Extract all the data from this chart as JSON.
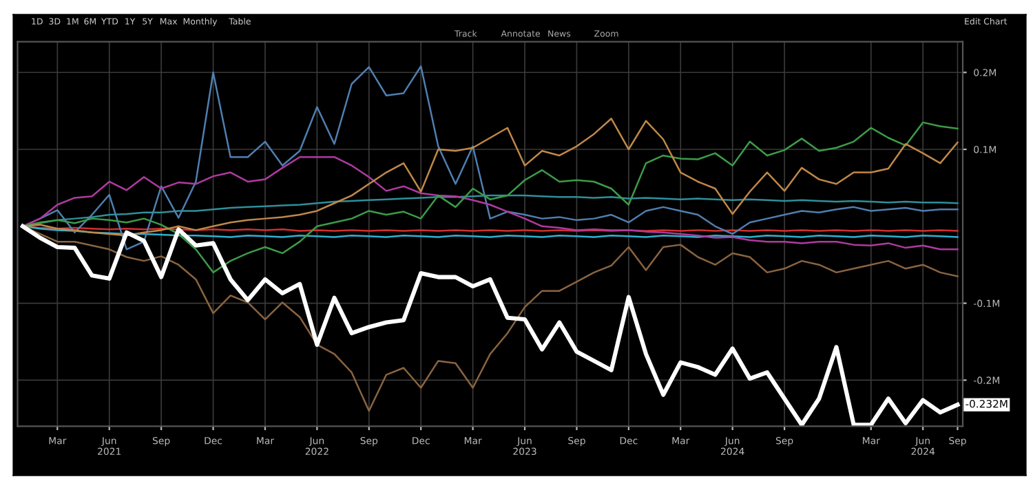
{
  "chart_data": {
    "type": "line",
    "categories": [
      null,
      null,
      "Mar",
      null,
      null,
      "Jun\n2021",
      null,
      null,
      "Sep",
      null,
      null,
      "Dec",
      null,
      null,
      "Mar",
      null,
      null,
      "Jun\n2022",
      null,
      null,
      "Sep",
      null,
      null,
      "Dec",
      null,
      null,
      "Mar",
      null,
      null,
      "Jun\n2023",
      null,
      null,
      "Sep",
      null,
      null,
      "Dec",
      null,
      null,
      "Mar",
      null,
      null,
      "Jun\n2024",
      null,
      null,
      "Sep",
      null,
      null,
      null,
      null,
      "Mar",
      null,
      null,
      "Jun\n2024",
      null,
      "Sep"
    ],
    "ylim": [
      -0.26,
      0.24
    ],
    "yticks": [
      {
        "value": -0.2,
        "label": "-0.2M"
      },
      {
        "value": -0.1,
        "label": "-0.1M"
      },
      {
        "value": 0.1,
        "label": "0.1M"
      },
      {
        "value": 0.2,
        "label": "0.2M"
      }
    ],
    "grid": true,
    "legend": false,
    "annotations": [
      "1D",
      "3D",
      "1M",
      "6M",
      "YTD",
      "1Y",
      "5Y",
      "Max",
      "Monthly",
      "Table",
      "Track",
      "Annotate",
      "News",
      "Zoom",
      "Edit Chart"
    ],
    "series": [
      {
        "color": "#d03030",
        "values": [
          0,
          -0.002,
          -0.003,
          -0.002,
          -0.003,
          -0.004,
          -0.003,
          -0.004,
          -0.003,
          -0.004,
          -0.005,
          -0.004,
          -0.005,
          -0.004,
          -0.005,
          -0.004,
          -0.006,
          -0.005,
          -0.006,
          -0.005,
          -0.006,
          -0.005,
          -0.006,
          -0.005,
          -0.006,
          -0.005,
          -0.006,
          -0.005,
          -0.006,
          -0.005,
          -0.006,
          -0.005,
          -0.006,
          -0.005,
          -0.006,
          -0.005,
          -0.006,
          -0.005,
          -0.006,
          -0.005,
          -0.006,
          -0.005,
          -0.006,
          -0.005,
          -0.006,
          -0.005,
          -0.006,
          -0.005,
          -0.006,
          -0.005,
          -0.006,
          -0.005,
          -0.006,
          -0.005,
          -0.006
        ]
      },
      {
        "color": "#30b0d0",
        "values": [
          0,
          -0.003,
          -0.005,
          -0.006,
          -0.008,
          -0.009,
          -0.01,
          -0.01,
          -0.011,
          -0.012,
          -0.012,
          -0.013,
          -0.014,
          -0.012,
          -0.013,
          -0.014,
          -0.012,
          -0.013,
          -0.014,
          -0.012,
          -0.013,
          -0.014,
          -0.012,
          -0.013,
          -0.014,
          -0.012,
          -0.013,
          -0.014,
          -0.012,
          -0.013,
          -0.014,
          -0.012,
          -0.013,
          -0.014,
          -0.012,
          -0.013,
          -0.014,
          -0.012,
          -0.013,
          -0.014,
          -0.012,
          -0.013,
          -0.014,
          -0.012,
          -0.013,
          -0.014,
          -0.012,
          -0.013,
          -0.014,
          -0.012,
          -0.013,
          -0.014,
          -0.012,
          -0.013,
          -0.014
        ]
      },
      {
        "color": "#2f8f9a",
        "values": [
          0,
          0.004,
          0.008,
          0.01,
          0.012,
          0.015,
          0.016,
          0.018,
          0.018,
          0.02,
          0.02,
          0.022,
          0.024,
          0.025,
          0.026,
          0.027,
          0.028,
          0.03,
          0.032,
          0.033,
          0.034,
          0.035,
          0.036,
          0.037,
          0.038,
          0.038,
          0.039,
          0.04,
          0.04,
          0.04,
          0.039,
          0.038,
          0.038,
          0.037,
          0.038,
          0.036,
          0.037,
          0.036,
          0.035,
          0.036,
          0.035,
          0.034,
          0.035,
          0.034,
          0.033,
          0.034,
          0.033,
          0.032,
          0.033,
          0.032,
          0.031,
          0.032,
          0.031,
          0.031,
          0.03
        ]
      },
      {
        "color": "#4f7fb0",
        "values": [
          0,
          0.01,
          0.021,
          -0.008,
          0.015,
          0.041,
          -0.03,
          -0.02,
          0.052,
          0.011,
          0.058,
          0.2,
          0.09,
          0.09,
          0.11,
          0.079,
          0.098,
          0.155,
          0.107,
          0.185,
          0.207,
          0.17,
          0.173,
          0.208,
          0.104,
          0.055,
          0.104,
          0.01,
          0.019,
          0.015,
          0.01,
          0.012,
          0.008,
          0.01,
          0.015,
          0.005,
          0.02,
          0.025,
          0.02,
          0.015,
          0.0,
          -0.01,
          0.005,
          0.01,
          0.015,
          0.02,
          0.018,
          0.022,
          0.025,
          0.02,
          0.022,
          0.024,
          0.02,
          0.022,
          0.022
        ]
      },
      {
        "color": "#b03aa0",
        "values": [
          0,
          0.01,
          0.028,
          0.037,
          0.039,
          0.058,
          0.047,
          0.064,
          0.049,
          0.057,
          0.055,
          0.065,
          0.07,
          0.058,
          0.061,
          0.076,
          0.09,
          0.09,
          0.09,
          0.079,
          0.064,
          0.046,
          0.052,
          0.043,
          0.04,
          0.039,
          0.034,
          0.028,
          0.019,
          0.01,
          0.0,
          -0.002,
          -0.005,
          -0.004,
          -0.005,
          -0.005,
          -0.007,
          -0.008,
          -0.01,
          -0.012,
          -0.015,
          -0.014,
          -0.018,
          -0.02,
          -0.02,
          -0.022,
          -0.02,
          -0.02,
          -0.024,
          -0.025,
          -0.022,
          -0.028,
          -0.025,
          -0.03,
          -0.03
        ]
      },
      {
        "color": "#3c9c48",
        "values": [
          0,
          0.005,
          0.008,
          0.004,
          0.01,
          0.008,
          0.005,
          0.01,
          0.002,
          -0.01,
          -0.03,
          -0.06,
          -0.045,
          -0.035,
          -0.027,
          -0.035,
          -0.02,
          0.0,
          0.005,
          0.01,
          0.02,
          0.015,
          0.019,
          0.01,
          0.04,
          0.025,
          0.049,
          0.035,
          0.04,
          0.06,
          0.073,
          0.058,
          0.06,
          0.058,
          0.049,
          0.028,
          0.082,
          0.092,
          0.088,
          0.087,
          0.095,
          0.079,
          0.11,
          0.092,
          0.099,
          0.114,
          0.098,
          0.102,
          0.11,
          0.128,
          0.115,
          0.105,
          0.135,
          0.13,
          0.127
        ]
      },
      {
        "color": "#c08848",
        "values": [
          0,
          0.002,
          -0.003,
          -0.005,
          -0.008,
          -0.01,
          -0.012,
          -0.008,
          -0.005,
          0.0,
          -0.005,
          0.0,
          0.005,
          0.008,
          0.01,
          0.012,
          0.015,
          0.02,
          0.03,
          0.04,
          0.055,
          0.07,
          0.082,
          0.045,
          0.1,
          0.098,
          0.102,
          0.115,
          0.128,
          0.079,
          0.098,
          0.092,
          0.104,
          0.12,
          0.14,
          0.1,
          0.137,
          0.113,
          0.07,
          0.058,
          0.049,
          0.016,
          0.045,
          0.07,
          0.046,
          0.076,
          0.061,
          0.055,
          0.07,
          0.07,
          0.075,
          0.107,
          0.095,
          0.082,
          0.109
        ]
      },
      {
        "color": "#8a6440",
        "values": [
          0,
          -0.01,
          -0.02,
          -0.02,
          -0.025,
          -0.03,
          -0.04,
          -0.045,
          -0.039,
          -0.05,
          -0.069,
          -0.113,
          -0.09,
          -0.099,
          -0.121,
          -0.099,
          -0.118,
          -0.154,
          -0.166,
          -0.19,
          -0.24,
          -0.193,
          -0.184,
          -0.21,
          -0.175,
          -0.178,
          -0.21,
          -0.166,
          -0.139,
          -0.105,
          -0.084,
          -0.084,
          -0.072,
          -0.06,
          -0.051,
          -0.027,
          -0.057,
          -0.027,
          -0.024,
          -0.04,
          -0.05,
          -0.035,
          -0.04,
          -0.06,
          -0.055,
          -0.045,
          -0.05,
          -0.06,
          -0.055,
          -0.05,
          -0.045,
          -0.055,
          -0.05,
          -0.06,
          -0.065
        ]
      },
      {
        "color": "#ffffff",
        "values": [
          0,
          -0.015,
          -0.027,
          -0.028,
          -0.064,
          -0.068,
          -0.008,
          -0.019,
          -0.066,
          -0.004,
          -0.025,
          -0.022,
          -0.069,
          -0.096,
          -0.069,
          -0.087,
          -0.075,
          -0.154,
          -0.093,
          -0.139,
          -0.131,
          -0.125,
          -0.122,
          -0.061,
          -0.066,
          -0.066,
          -0.078,
          -0.069,
          -0.119,
          -0.121,
          -0.16,
          -0.125,
          -0.163,
          -0.175,
          -0.187,
          -0.092,
          -0.166,
          -0.219,
          -0.177,
          -0.183,
          -0.193,
          -0.159,
          -0.198,
          -0.19,
          -0.224,
          -0.258,
          -0.224,
          -0.157,
          -0.258,
          -0.258,
          -0.224,
          -0.256,
          -0.226,
          -0.242,
          -0.232
        ],
        "value_labels": [
          null,
          null,
          null,
          null,
          null,
          null,
          null,
          null,
          null,
          null,
          null,
          null,
          null,
          null,
          null,
          null,
          null,
          null,
          null,
          null,
          null,
          null,
          null,
          null,
          null,
          null,
          null,
          null,
          null,
          null,
          null,
          null,
          null,
          null,
          null,
          null,
          null,
          null,
          null,
          null,
          null,
          null,
          null,
          null,
          null,
          null,
          null,
          null,
          null,
          null,
          null,
          null,
          null,
          null,
          "-0.232M"
        ]
      }
    ]
  }
}
